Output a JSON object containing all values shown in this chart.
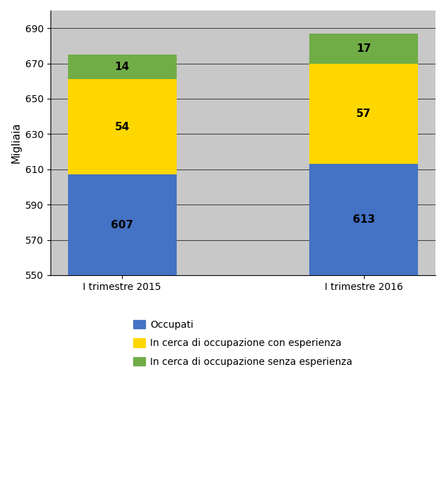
{
  "categories": [
    "I trimestre 2015",
    "I trimestre 2016"
  ],
  "occupati_display": [
    607,
    613
  ],
  "cerca_con_esp": [
    54,
    57
  ],
  "cerca_senza_esp": [
    14,
    17
  ],
  "bar_colors": {
    "occupati": "#4472C4",
    "cerca_con_esp": "#FFD700",
    "cerca_senza_esp": "#70AD47"
  },
  "ylabel": "Migliaia",
  "ylim_min": 550,
  "ylim_max": 700,
  "yticks": [
    550,
    570,
    590,
    610,
    630,
    650,
    670,
    690
  ],
  "legend_labels": [
    "Occupati",
    "In cerca di occupazione con esperienza",
    "In cerca di occupazione senza esperienza"
  ],
  "bar_width": 0.45,
  "background_color": "#FFFFFF",
  "plot_bg_color": "#C8C8C8",
  "grid_color": "#000000",
  "font_size_labels": 11,
  "font_size_ticks": 10,
  "font_size_legend": 10
}
